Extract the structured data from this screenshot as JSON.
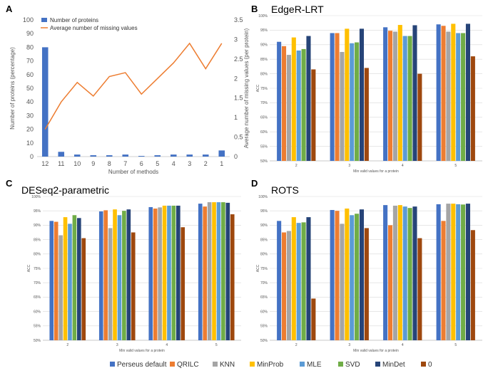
{
  "colors": {
    "series": [
      "#4472C4",
      "#ED7D31",
      "#A5A5A5",
      "#FFC000",
      "#5B9BD5",
      "#70AD47",
      "#264478",
      "#9E480E"
    ],
    "panel_a_bar": "#4472C4",
    "panel_a_line": "#ED7D31",
    "grid": "#D9D9D9",
    "axis": "#BFBFBF"
  },
  "legend": {
    "items": [
      "Perseus default",
      "QRILC",
      "KNN",
      "MinProb",
      "MLE",
      "SVD",
      "MinDet",
      "0"
    ]
  },
  "chart_data": [
    {
      "panel": "A",
      "type": "bar+line",
      "title": "",
      "categories": [
        "12",
        "11",
        "10",
        "9",
        "8",
        "7",
        "6",
        "5",
        "4",
        "3",
        "2",
        "1"
      ],
      "xlabel": "Number of methods",
      "ylabel": "Number of proteins (percentage)",
      "y2label": "Average number of missing values (per protein)",
      "ylim": [
        0,
        100
      ],
      "y2lim": [
        0,
        3.5
      ],
      "yticks": [
        "0",
        "10",
        "20",
        "30",
        "40",
        "50",
        "60",
        "70",
        "80",
        "90",
        "100"
      ],
      "y2ticks": [
        "0",
        "0.5",
        "1",
        "1.5",
        "2",
        "2.5",
        "3",
        "3.5"
      ],
      "grid": false,
      "legend_position": "top-left",
      "series": [
        {
          "name": "Number of proteins",
          "kind": "bar",
          "axis": "left",
          "values": [
            80,
            3.5,
            1.5,
            1,
            1,
            1.5,
            0.5,
            1,
            1.5,
            1.5,
            1.5,
            4.5
          ]
        },
        {
          "name": "Average number of missing values",
          "kind": "line",
          "axis": "right",
          "values": [
            0.7,
            1.4,
            1.9,
            1.55,
            2.05,
            2.15,
            1.6,
            2.0,
            2.4,
            2.9,
            2.25,
            2.9
          ]
        }
      ]
    },
    {
      "panel": "B",
      "type": "bar",
      "title": "EdgeR-LRT",
      "categories": [
        "2",
        "3",
        "4",
        "5"
      ],
      "xlabel": "Min valid values for a protein",
      "ylabel": "ACC",
      "ylim": [
        50,
        100
      ],
      "yticks": [
        "50%",
        "55%",
        "60%",
        "65%",
        "70%",
        "75%",
        "80%",
        "85%",
        "90%",
        "95%",
        "100%"
      ],
      "grid": true,
      "series": [
        {
          "name": "Perseus default",
          "values": [
            91.0,
            94.0,
            96.0,
            97.0
          ]
        },
        {
          "name": "QRILC",
          "values": [
            89.5,
            94.0,
            94.8,
            96.5
          ]
        },
        {
          "name": "KNN",
          "values": [
            86.5,
            87.5,
            94.5,
            94.5
          ]
        },
        {
          "name": "MinProb",
          "values": [
            92.5,
            95.5,
            96.8,
            97.2
          ]
        },
        {
          "name": "MLE",
          "values": [
            88.0,
            90.5,
            93.0,
            94.0
          ]
        },
        {
          "name": "SVD",
          "values": [
            88.5,
            90.8,
            93.0,
            94.0
          ]
        },
        {
          "name": "MinDet",
          "values": [
            93.0,
            95.5,
            96.7,
            97.2
          ]
        },
        {
          "name": "0",
          "values": [
            81.5,
            82.0,
            80.0,
            86.0
          ]
        }
      ]
    },
    {
      "panel": "C",
      "type": "bar",
      "title": "DESeq2-parametric",
      "categories": [
        "2",
        "3",
        "4",
        "5"
      ],
      "xlabel": "Min valid values for a protein",
      "ylabel": "ACC",
      "ylim": [
        50,
        100
      ],
      "yticks": [
        "50%",
        "55%",
        "60%",
        "65%",
        "70%",
        "75%",
        "80%",
        "85%",
        "90%",
        "95%",
        "100%"
      ],
      "grid": true,
      "series": [
        {
          "name": "Perseus default",
          "values": [
            91.5,
            94.8,
            96.3,
            97.5
          ]
        },
        {
          "name": "QRILC",
          "values": [
            91.2,
            95.2,
            95.8,
            96.5
          ]
        },
        {
          "name": "KNN",
          "values": [
            86.5,
            89.0,
            96.2,
            98.0
          ]
        },
        {
          "name": "MinProb",
          "values": [
            92.8,
            95.5,
            96.8,
            98.0
          ]
        },
        {
          "name": "MLE",
          "values": [
            90.5,
            93.5,
            96.8,
            98.0
          ]
        },
        {
          "name": "SVD",
          "values": [
            93.5,
            95.0,
            96.8,
            98.0
          ]
        },
        {
          "name": "MinDet",
          "values": [
            92.5,
            95.5,
            96.8,
            97.8
          ]
        },
        {
          "name": "0",
          "values": [
            85.5,
            87.5,
            89.3,
            93.8
          ]
        }
      ]
    },
    {
      "panel": "D",
      "type": "bar",
      "title": "ROTS",
      "categories": [
        "2",
        "3",
        "4",
        "5"
      ],
      "xlabel": "Min valid values for a protein",
      "ylabel": "ACC",
      "ylim": [
        50,
        100
      ],
      "yticks": [
        "50%",
        "55%",
        "60%",
        "65%",
        "70%",
        "75%",
        "80%",
        "85%",
        "90%",
        "95%",
        "100%"
      ],
      "grid": true,
      "series": [
        {
          "name": "Perseus default",
          "values": [
            91.5,
            95.3,
            97.0,
            97.3
          ]
        },
        {
          "name": "QRILC",
          "values": [
            87.5,
            95.0,
            90.0,
            91.5
          ]
        },
        {
          "name": "KNN",
          "values": [
            88.0,
            90.5,
            96.8,
            97.5
          ]
        },
        {
          "name": "MinProb",
          "values": [
            92.8,
            95.8,
            97.0,
            97.5
          ]
        },
        {
          "name": "MLE",
          "values": [
            90.8,
            93.5,
            96.5,
            97.3
          ]
        },
        {
          "name": "SVD",
          "values": [
            91.0,
            94.0,
            96.0,
            97.2
          ]
        },
        {
          "name": "MinDet",
          "values": [
            92.8,
            95.5,
            96.5,
            97.5
          ]
        },
        {
          "name": "0",
          "values": [
            64.5,
            89.0,
            85.5,
            88.3
          ]
        }
      ]
    }
  ]
}
